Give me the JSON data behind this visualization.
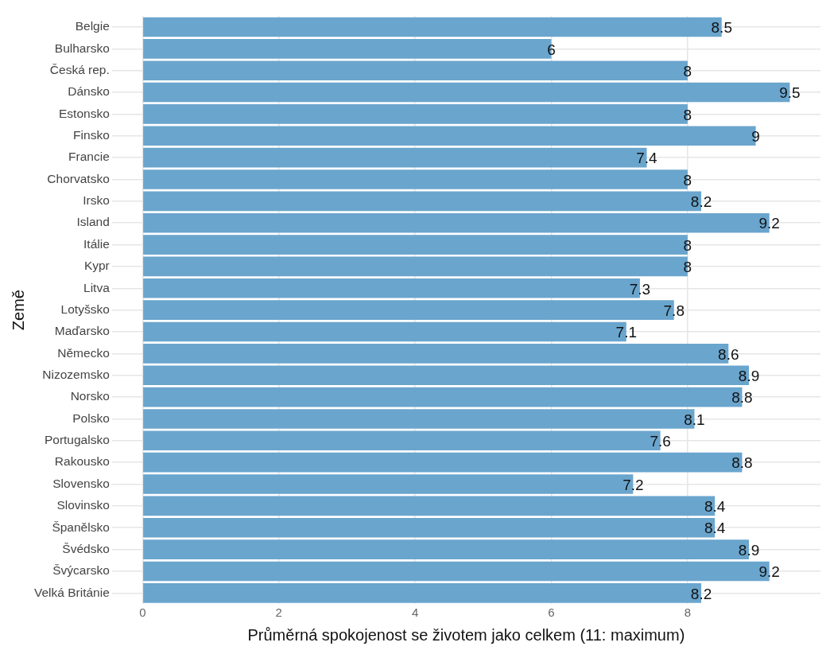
{
  "chart_data": {
    "type": "bar",
    "orientation": "horizontal",
    "xlabel": "Průměrná spokojenost se životem jako celkem (11: maximum)",
    "ylabel": "Země",
    "categories": [
      "Belgie",
      "Bulharsko",
      "Česká rep.",
      "Dánsko",
      "Estonsko",
      "Finsko",
      "Francie",
      "Chorvatsko",
      "Irsko",
      "Island",
      "Itálie",
      "Kypr",
      "Litva",
      "Lotyšsko",
      "Maďarsko",
      "Německo",
      "Nizozemsko",
      "Norsko",
      "Polsko",
      "Portugalsko",
      "Rakousko",
      "Slovensko",
      "Slovinsko",
      "Španělsko",
      "Švédsko",
      "Švýcarsko",
      "Velká Británie"
    ],
    "values": [
      8.5,
      6,
      8,
      9.5,
      8,
      9,
      7.4,
      8,
      8.2,
      9.2,
      8,
      8,
      7.3,
      7.8,
      7.1,
      8.6,
      8.9,
      8.8,
      8.1,
      7.6,
      8.8,
      7.2,
      8.4,
      8.4,
      8.9,
      9.2,
      8.2
    ],
    "color": "#6aa5cd",
    "xlim": [
      -0.45,
      9.95
    ],
    "xticks": [
      0,
      2,
      4,
      6,
      8
    ],
    "grid": true,
    "data_labels": true,
    "legend": false
  }
}
